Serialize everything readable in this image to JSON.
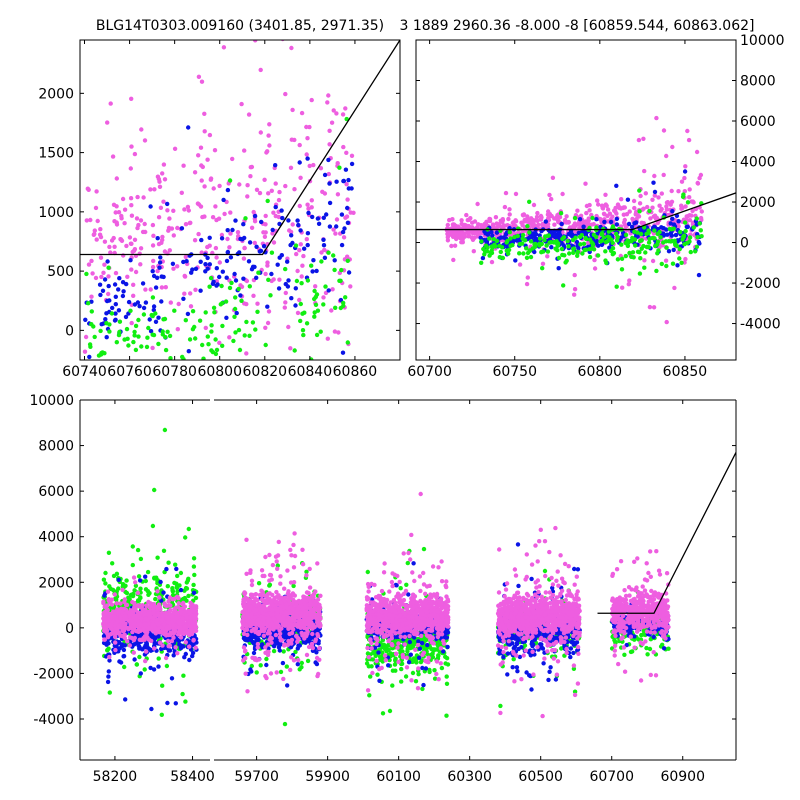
{
  "chart_data": [
    {
      "type": "scatter",
      "title": "BLG14T0303.009160 (3401.85, 2971.35)",
      "xlim": [
        60738,
        60880
      ],
      "ylim": [
        -250,
        2450
      ],
      "xticks": [
        60740,
        60760,
        60780,
        60800,
        60820,
        60840,
        60860
      ],
      "yticks": [
        0,
        500,
        1000,
        1500,
        2000
      ],
      "tick_side": "left",
      "model_line": {
        "x": [
          60738,
          60819,
          60880
        ],
        "y": [
          640,
          640,
          2450
        ]
      },
      "series": [
        {
          "name": "magenta",
          "color": "#ee5ee0",
          "clusters": [
            {
              "x": [
                60740,
                60860
              ],
              "y": [
                700,
                1100
              ],
              "sy": [
                400,
                900
              ],
              "n": 420
            }
          ]
        },
        {
          "name": "blue",
          "color": "#0a14e6",
          "clusters": [
            {
              "x": [
                60740,
                60860
              ],
              "y": [
                150,
                900
              ],
              "sy": [
                300,
                450
              ],
              "n": 210
            }
          ]
        },
        {
          "name": "green",
          "color": "#11ee11",
          "clusters": [
            {
              "x": [
                60740,
                60860
              ],
              "y": [
                -100,
                300
              ],
              "sy": [
                250,
                450
              ],
              "n": 170
            }
          ]
        }
      ]
    },
    {
      "type": "scatter",
      "title": "3 1889 2960.36 -8.000 -8 [60859.544, 60863.062]",
      "xlim": [
        60692,
        60880
      ],
      "ylim": [
        -5800,
        10000
      ],
      "xticks": [
        60700,
        60750,
        60800,
        60850
      ],
      "yticks": [
        -4000,
        -2000,
        0,
        2000,
        4000,
        6000,
        8000,
        10000
      ],
      "tick_side": "right",
      "model_line": {
        "x": [
          60692,
          60819,
          60880
        ],
        "y": [
          640,
          640,
          2450
        ]
      },
      "series": [
        {
          "name": "magenta",
          "color": "#ee5ee0",
          "clusters": [
            {
              "x": [
                60710,
                60860
              ],
              "y": [
                500,
                1200
              ],
              "sy": [
                300,
                1500
              ],
              "n": 700
            }
          ]
        },
        {
          "name": "blue",
          "color": "#0a14e6",
          "clusters": [
            {
              "x": [
                60730,
                60860
              ],
              "y": [
                100,
                500
              ],
              "sy": [
                300,
                700
              ],
              "n": 300
            }
          ]
        },
        {
          "name": "green",
          "color": "#11ee11",
          "clusters": [
            {
              "x": [
                60730,
                60860
              ],
              "y": [
                -300,
                200
              ],
              "sy": [
                500,
                1200
              ],
              "n": 260
            }
          ]
        }
      ]
    },
    {
      "type": "scatter",
      "title": "",
      "segments": [
        {
          "xlim": [
            58110,
            58445
          ],
          "xticks": [
            58200,
            58400
          ]
        },
        {
          "xlim": [
            59580,
            61050
          ],
          "xticks": [
            59700,
            59900,
            60100,
            60300,
            60500,
            60700,
            60900
          ]
        }
      ],
      "ylim": [
        -5800,
        10000
      ],
      "yticks": [
        -4000,
        -2000,
        0,
        2000,
        4000,
        6000,
        8000,
        10000
      ],
      "tick_side": "left",
      "model_line": {
        "x": [
          60660,
          60819,
          61050
        ],
        "y": [
          640,
          640,
          7700
        ]
      },
      "series": [
        {
          "name": "green",
          "color": "#11ee11",
          "clusters": [
            {
              "x": [
                58170,
                58410
              ],
              "y": [
                800,
                800
              ],
              "sy": [
                700,
                2200
              ],
              "n": 420
            },
            {
              "x": [
                59660,
                59880
              ],
              "y": [
                150,
                150
              ],
              "sy": [
                500,
                1400
              ],
              "n": 300
            },
            {
              "x": [
                60010,
                60240
              ],
              "y": [
                -700,
                -700
              ],
              "sy": [
                500,
                1500
              ],
              "n": 380
            },
            {
              "x": [
                60380,
                60610
              ],
              "y": [
                -100,
                -100
              ],
              "sy": [
                400,
                1100
              ],
              "n": 250
            },
            {
              "x": [
                60700,
                60860
              ],
              "y": [
                -200,
                -200
              ],
              "sy": [
                400,
                800
              ],
              "n": 120
            }
          ]
        },
        {
          "name": "blue",
          "color": "#0a14e6",
          "clusters": [
            {
              "x": [
                58170,
                58410
              ],
              "y": [
                -300,
                -300
              ],
              "sy": [
                400,
                1300
              ],
              "n": 380
            },
            {
              "x": [
                59660,
                59880
              ],
              "y": [
                -200,
                -200
              ],
              "sy": [
                300,
                900
              ],
              "n": 380
            },
            {
              "x": [
                60010,
                60240
              ],
              "y": [
                100,
                100
              ],
              "sy": [
                300,
                1000
              ],
              "n": 360
            },
            {
              "x": [
                60380,
                60610
              ],
              "y": [
                -300,
                -300
              ],
              "sy": [
                400,
                1200
              ],
              "n": 360
            },
            {
              "x": [
                60700,
                60860
              ],
              "y": [
                200,
                200
              ],
              "sy": [
                300,
                500
              ],
              "n": 150
            }
          ]
        },
        {
          "name": "magenta",
          "color": "#ee5ee0",
          "clusters": [
            {
              "x": [
                58170,
                58410
              ],
              "y": [
                300,
                300
              ],
              "sy": [
                300,
                700
              ],
              "n": 900
            },
            {
              "x": [
                59660,
                59880
              ],
              "y": [
                600,
                600
              ],
              "sy": [
                400,
                1500
              ],
              "n": 900
            },
            {
              "x": [
                60010,
                60240
              ],
              "y": [
                500,
                500
              ],
              "sy": [
                400,
                1500
              ],
              "n": 900
            },
            {
              "x": [
                60380,
                60610
              ],
              "y": [
                500,
                500
              ],
              "sy": [
                400,
                1400
              ],
              "n": 900
            },
            {
              "x": [
                60700,
                60860
              ],
              "y": [
                700,
                700
              ],
              "sy": [
                400,
                1200
              ],
              "n": 450
            }
          ]
        }
      ]
    }
  ]
}
